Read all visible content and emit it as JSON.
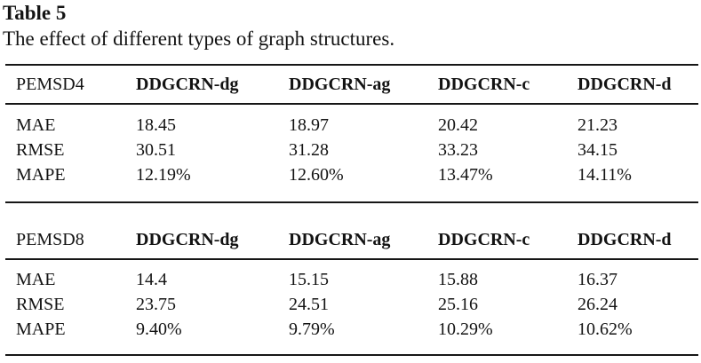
{
  "title": "Table 5",
  "caption": "The effect of different types of graph structures.",
  "colors": {
    "background": "#ffffff",
    "text": "#131313",
    "rule": "#161616"
  },
  "table": {
    "sections": [
      {
        "dataset": "PEMSD4",
        "columns": [
          "DDGCRN-dg",
          "DDGCRN-ag",
          "DDGCRN-c",
          "DDGCRN-d"
        ],
        "rows": [
          {
            "metric": "MAE",
            "values": [
              "18.45",
              "18.97",
              "20.42",
              "21.23"
            ]
          },
          {
            "metric": "RMSE",
            "values": [
              "30.51",
              "31.28",
              "33.23",
              "34.15"
            ]
          },
          {
            "metric": "MAPE",
            "values": [
              "12.19%",
              "12.60%",
              "13.47%",
              "14.11%"
            ]
          }
        ]
      },
      {
        "dataset": "PEMSD8",
        "columns": [
          "DDGCRN-dg",
          "DDGCRN-ag",
          "DDGCRN-c",
          "DDGCRN-d"
        ],
        "rows": [
          {
            "metric": "MAE",
            "values": [
              "14.4",
              "15.15",
              "15.88",
              "16.37"
            ]
          },
          {
            "metric": "RMSE",
            "values": [
              "23.75",
              "24.51",
              "25.16",
              "26.24"
            ]
          },
          {
            "metric": "MAPE",
            "values": [
              "9.40%",
              "9.79%",
              "10.29%",
              "10.62%"
            ]
          }
        ]
      }
    ]
  }
}
